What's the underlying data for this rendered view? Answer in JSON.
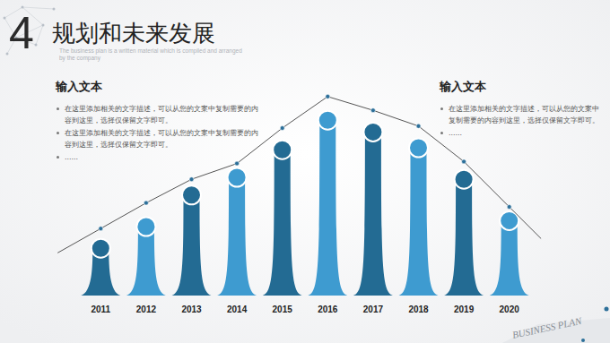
{
  "chart_data": {
    "type": "bar",
    "section_number": "4",
    "title": "规划和未来发展",
    "subtitle": "The business plan is a written material which is compiled and arranged by the company",
    "text_blocks": [
      {
        "heading": "输入文本",
        "items": [
          "在这里添加相关的文字描述，可以从您的文案中复制需要的内容到这里，选择仅保留文字即可。",
          "在这里添加相关的文字描述，可以从您的文案中复制需要的内容到这里，选择仅保留文字即可。",
          "……"
        ]
      },
      {
        "heading": "输入文本",
        "items": [
          "在这里添加相关的文字描述，可以从您的文案中复制需要的内容到这里，选择仅保留文字即可。",
          "……"
        ]
      }
    ],
    "footer": "BUSINESS PLAN",
    "categories": [
      "2011",
      "2012",
      "2013",
      "2014",
      "2015",
      "2016",
      "2017",
      "2018",
      "2019",
      "2020"
    ],
    "series": [
      {
        "type": "bar",
        "values": [
          24,
          35,
          51,
          60,
          74,
          89,
          83,
          75,
          59,
          38
        ],
        "colors": [
          "#236b93",
          "#3e9bd0",
          "#236b93",
          "#3e9bd0",
          "#236b93",
          "#3e9bd0",
          "#236b93",
          "#3e9bd0",
          "#236b93",
          "#3e9bd0"
        ]
      },
      {
        "type": "line",
        "values": [
          34,
          47,
          59,
          67,
          85,
          101,
          94,
          86,
          68,
          45
        ],
        "color": "#555555",
        "marker": "circle"
      }
    ],
    "ylim": [
      0,
      110
    ],
    "tick_labels": "x",
    "grid": false
  }
}
